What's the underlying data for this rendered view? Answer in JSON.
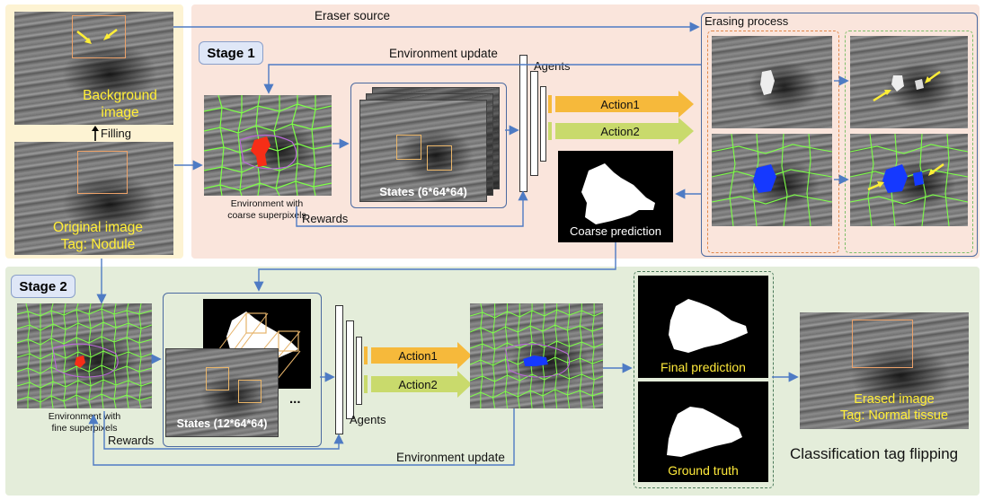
{
  "labels": {
    "eraser_source": "Eraser source",
    "erasing_process": "Erasing process",
    "stage1": "Stage 1",
    "stage2": "Stage 2",
    "env_update_1": "Environment update",
    "env_update_2": "Environment update",
    "agents_1": "Agents",
    "agents_2": "Agents",
    "action1_s1": "Action1",
    "action2_s1": "Action2",
    "action1_s2": "Action1",
    "action2_s2": "Action2",
    "background_image_l1": "Background",
    "background_image_l2": "image",
    "filling": "Filling",
    "original_image_l1": "Original image",
    "original_image_l2": "Tag: Nodule",
    "env_coarse_l1": "Environment with",
    "env_coarse_l2": "coarse superpixels",
    "rewards_1": "Rewards",
    "rewards_2": "Rewards",
    "states_1": "States (6*64*64)",
    "states_2": "States (12*64*64)",
    "ellipsis": "...",
    "coarse_prediction": "Coarse prediction",
    "env_fine_l1": "Environment with",
    "env_fine_l2": "fine superpixels",
    "final_prediction": "Final prediction",
    "ground_truth": "Ground truth",
    "erased_image_l1": "Erased image",
    "erased_image_l2": "Tag: Normal tissue",
    "classification_flip": "Classification tag flipping"
  },
  "colors": {
    "stage1_bg": "#fae5dc",
    "stage2_bg": "#e4edda",
    "left_bg": "#fdf3d3",
    "action1": "#f6b93b",
    "action2": "#c9da6c",
    "arrow": "#4e7bc4",
    "superpixel": "#7dfc4a",
    "label_yellow": "#ffea3a"
  }
}
